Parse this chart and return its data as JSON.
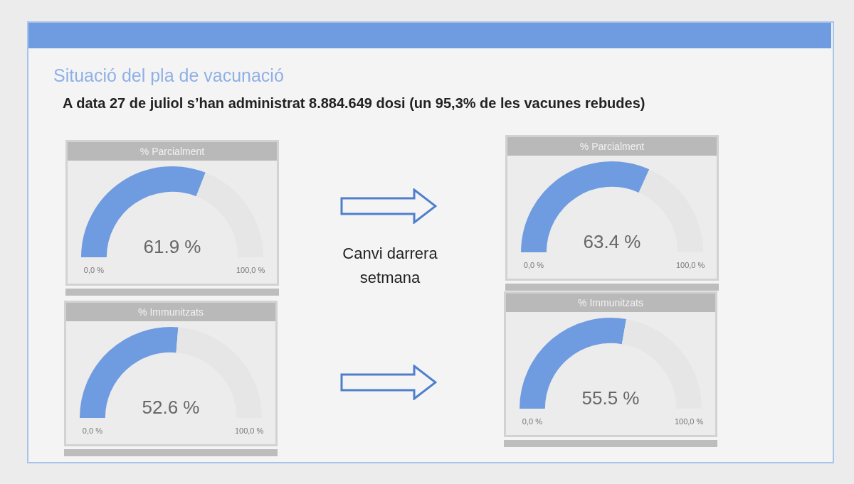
{
  "chart_data": [
    {
      "type": "donut",
      "title": "% Parcialment",
      "categories": [
        null,
        null
      ],
      "values": [
        61.9,
        38.1
      ],
      "colors": [
        "#6f9be0",
        "#e6e6e6"
      ],
      "value_labels": [
        "61.9 %",
        null
      ],
      "annotations": [
        "0,0 %",
        "100,0 %",
        "Situació del pla de vacunació",
        "A data 27 de juliol s’han administrat  8.884.649 dosi (un 95,3% de les vacunes rebudes)",
        "Canvi darrera setmana"
      ]
    },
    {
      "type": "donut",
      "title": "% Parcialment",
      "categories": [
        null,
        null
      ],
      "values": [
        63.4,
        36.6
      ],
      "colors": [
        "#6f9be0",
        "#e6e6e6"
      ],
      "value_labels": [
        "63.4 %",
        null
      ],
      "annotations": [
        "0,0 %",
        "100,0 %"
      ]
    },
    {
      "type": "donut",
      "title": "% Immunitzats",
      "categories": [
        null,
        null
      ],
      "values": [
        52.6,
        47.4
      ],
      "colors": [
        "#6f9be0",
        "#e6e6e6"
      ],
      "value_labels": [
        "52.6 %",
        null
      ],
      "annotations": [
        "0,0 %",
        "100,0 %"
      ]
    },
    {
      "type": "donut",
      "title": "% Immunitzats",
      "categories": [
        null,
        null
      ],
      "values": [
        55.5,
        44.5
      ],
      "colors": [
        "#6f9be0",
        "#e6e6e6"
      ],
      "value_labels": [
        "55.5 %",
        null
      ],
      "annotations": [
        "0,0 %",
        "100,0 %"
      ]
    }
  ]
}
